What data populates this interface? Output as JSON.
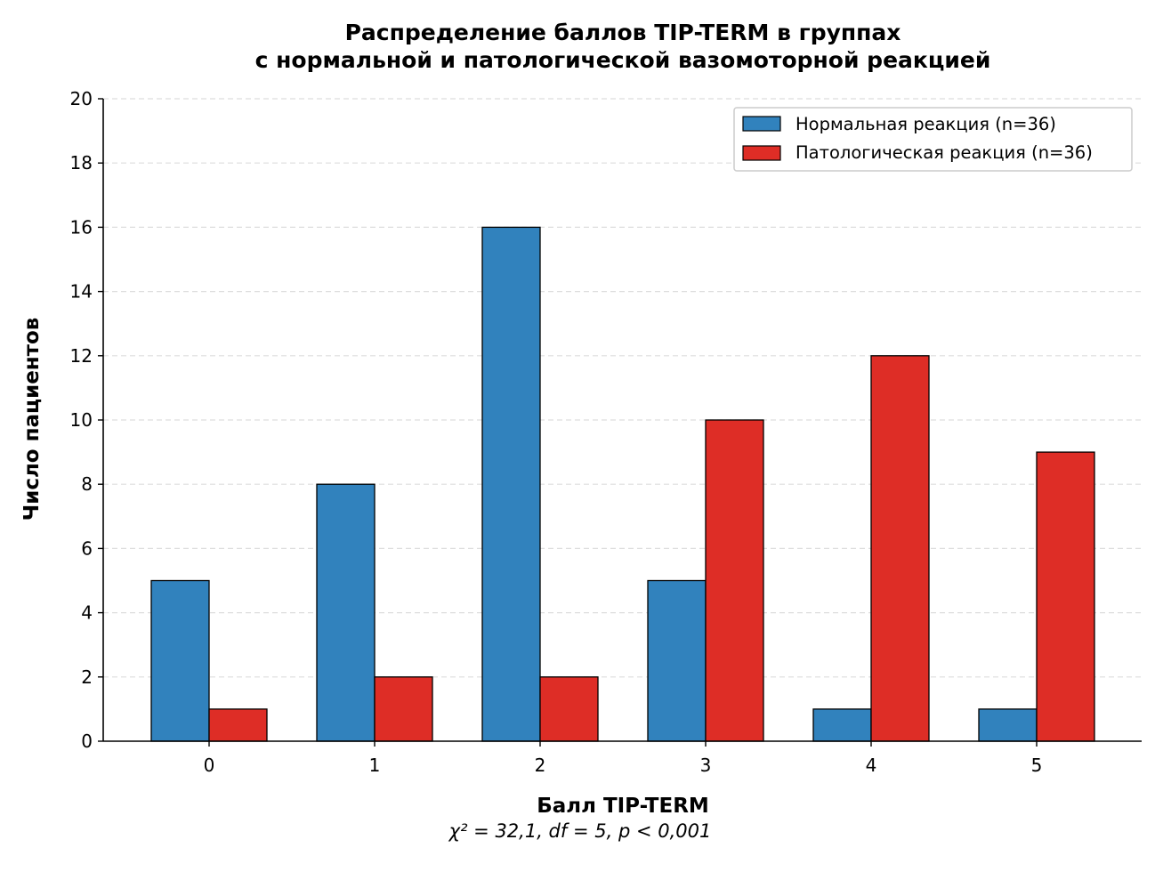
{
  "chart_data": {
    "type": "bar",
    "title_line1": "Распределение баллов TIP-TERM в группах",
    "title_line2": "с нормальной и патологической вазомоторной реакцией",
    "xlabel": "Балл TIP-TERM",
    "ylabel": "Число пациентов",
    "annotation": "χ² = 32,1, df = 5, p < 0,001",
    "categories": [
      "0",
      "1",
      "2",
      "3",
      "4",
      "5"
    ],
    "series": [
      {
        "name": "Нормальная реакция (n=36)",
        "color": "#3182bd",
        "values": [
          5,
          8,
          16,
          5,
          1,
          1
        ]
      },
      {
        "name": "Патологическая реакция (n=36)",
        "color": "#de2d26",
        "values": [
          1,
          2,
          2,
          10,
          12,
          9
        ]
      }
    ],
    "ylim": [
      0,
      20
    ],
    "yticks": [
      "0",
      "2",
      "4",
      "6",
      "8",
      "10",
      "12",
      "14",
      "16",
      "18",
      "20"
    ],
    "grid": "horizontal dashed",
    "legend_position": "top-right"
  }
}
